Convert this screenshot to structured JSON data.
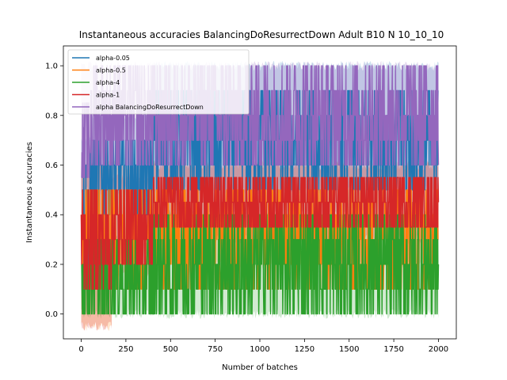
{
  "chart_data": {
    "type": "line",
    "title": "Instantaneous accuracies BalancingDoResurrectDown Adult B10 N 10_10_10",
    "xlabel": "Number of batches",
    "ylabel": "Instantaneous accuracies",
    "xlim": [
      -100,
      2100
    ],
    "ylim": [
      -0.1,
      1.08
    ],
    "xticks": [
      0,
      250,
      500,
      750,
      1000,
      1250,
      1500,
      1750,
      2000
    ],
    "yticks": [
      0.0,
      0.2,
      0.4,
      0.6,
      0.8,
      1.0
    ],
    "ytick_labels": [
      "0.0",
      "0.2",
      "0.4",
      "0.6",
      "0.8",
      "1.0"
    ],
    "legend_position": "top-left",
    "grid": false,
    "series": [
      {
        "name": "alpha-0.05",
        "color": "#1f77b4",
        "phases": [
          {
            "x": [
              0,
              50
            ],
            "low": 0.2,
            "high": 0.6,
            "band": [
              0.1,
              0.7
            ]
          },
          {
            "x": [
              50,
              400
            ],
            "low": 0.4,
            "high": 0.7,
            "band": [
              0.3,
              0.8
            ]
          },
          {
            "x": [
              400,
              2000
            ],
            "low": 0.5,
            "high": 0.9,
            "band": [
              0.4,
              1.0
            ]
          }
        ]
      },
      {
        "name": "alpha-0.5",
        "color": "#ff7f0e",
        "phases": [
          {
            "x": [
              0,
              170
            ],
            "low": 0.1,
            "high": 0.5,
            "band": [
              -0.05,
              0.6
            ]
          },
          {
            "x": [
              170,
              2000
            ],
            "low": 0.1,
            "high": 0.5,
            "band": [
              0.2,
              0.6
            ]
          }
        ]
      },
      {
        "name": "alpha-4",
        "color": "#2ca02c",
        "phases": [
          {
            "x": [
              0,
              400
            ],
            "low": 0.0,
            "high": 0.3,
            "band": [
              0.0,
              0.3
            ]
          },
          {
            "x": [
              400,
              2000
            ],
            "low": 0.0,
            "high": 0.4,
            "band": [
              0.0,
              0.4
            ]
          }
        ]
      },
      {
        "name": "alpha-1",
        "color": "#d62728",
        "phases": [
          {
            "x": [
              0,
              170
            ],
            "low": 0.1,
            "high": 0.5,
            "band": [
              -0.05,
              0.6
            ]
          },
          {
            "x": [
              170,
              400
            ],
            "low": 0.2,
            "high": 0.5,
            "band": [
              0.15,
              0.55
            ]
          },
          {
            "x": [
              400,
              2000
            ],
            "low": 0.35,
            "high": 0.55,
            "band": [
              0.3,
              0.6
            ]
          }
        ]
      },
      {
        "name": "alpha BalancingDoResurrectDown",
        "color": "#9467bd",
        "phases": [
          {
            "x": [
              0,
              50
            ],
            "low": 0.55,
            "high": 0.9,
            "band": [
              0.5,
              1.0
            ]
          },
          {
            "x": [
              50,
              2000
            ],
            "low": 0.6,
            "high": 1.0,
            "band": [
              0.5,
              1.0
            ]
          }
        ]
      }
    ]
  }
}
